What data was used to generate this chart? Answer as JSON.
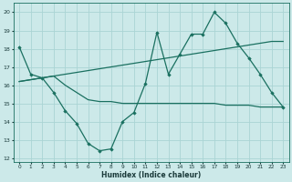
{
  "xlabel": "Humidex (Indice chaleur)",
  "background_color": "#cce9e9",
  "grid_color": "#aad4d4",
  "line_color": "#1a7060",
  "xlim": [
    -0.5,
    23.5
  ],
  "ylim": [
    11.8,
    20.5
  ],
  "yticks": [
    12,
    13,
    14,
    15,
    16,
    17,
    18,
    19,
    20
  ],
  "xticks": [
    0,
    1,
    2,
    3,
    4,
    5,
    6,
    7,
    8,
    9,
    10,
    11,
    12,
    13,
    14,
    15,
    16,
    17,
    18,
    19,
    20,
    21,
    22,
    23
  ],
  "line1_x": [
    0,
    1,
    2,
    3,
    4,
    5,
    6,
    7,
    8,
    9,
    10,
    11,
    12,
    13,
    14,
    15,
    16,
    17,
    18,
    19,
    20,
    21,
    22,
    23
  ],
  "line1_y": [
    18.1,
    16.6,
    16.4,
    15.6,
    14.6,
    13.9,
    12.8,
    12.4,
    12.5,
    14.0,
    14.5,
    16.1,
    18.9,
    16.6,
    17.7,
    18.8,
    18.8,
    20.0,
    19.4,
    18.3,
    17.5,
    16.6,
    15.6,
    14.8
  ],
  "line2_x": [
    0,
    1,
    2,
    3,
    4,
    5,
    6,
    7,
    8,
    9,
    10,
    11,
    12,
    13,
    14,
    15,
    16,
    17,
    18,
    19,
    20,
    21,
    22,
    23
  ],
  "line2_y": [
    16.2,
    16.3,
    16.4,
    16.5,
    16.6,
    16.7,
    16.8,
    16.9,
    17.0,
    17.1,
    17.2,
    17.3,
    17.4,
    17.5,
    17.6,
    17.7,
    17.8,
    17.9,
    18.0,
    18.1,
    18.2,
    18.3,
    18.4,
    18.4
  ],
  "line3_x": [
    0,
    1,
    2,
    3,
    4,
    5,
    6,
    7,
    8,
    9,
    10,
    11,
    12,
    13,
    14,
    15,
    16,
    17,
    18,
    19,
    20,
    21,
    22,
    23
  ],
  "line3_y": [
    16.2,
    16.3,
    16.4,
    16.5,
    16.0,
    15.6,
    15.2,
    15.1,
    15.1,
    15.0,
    15.0,
    15.0,
    15.0,
    15.0,
    15.0,
    15.0,
    15.0,
    15.0,
    14.9,
    14.9,
    14.9,
    14.8,
    14.8,
    14.8
  ]
}
